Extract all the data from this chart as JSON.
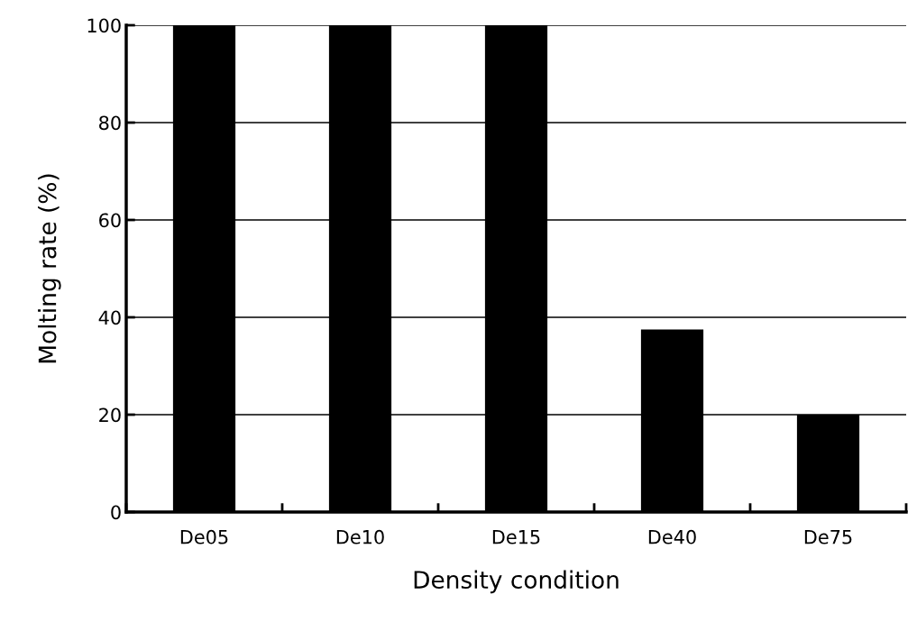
{
  "chart_data": {
    "type": "bar",
    "xlabel": "Density condition",
    "ylabel": "Molting rate (%)",
    "categories": [
      "De05",
      "De10",
      "De15",
      "De40",
      "De75"
    ],
    "series": [
      {
        "color": "#000000",
        "values": [
          100,
          100,
          100,
          37.5,
          20
        ]
      }
    ],
    "ylim": [
      0,
      100
    ],
    "yticks": [
      0,
      20,
      40,
      60,
      80,
      100
    ],
    "grid": "y",
    "legend": false
  }
}
